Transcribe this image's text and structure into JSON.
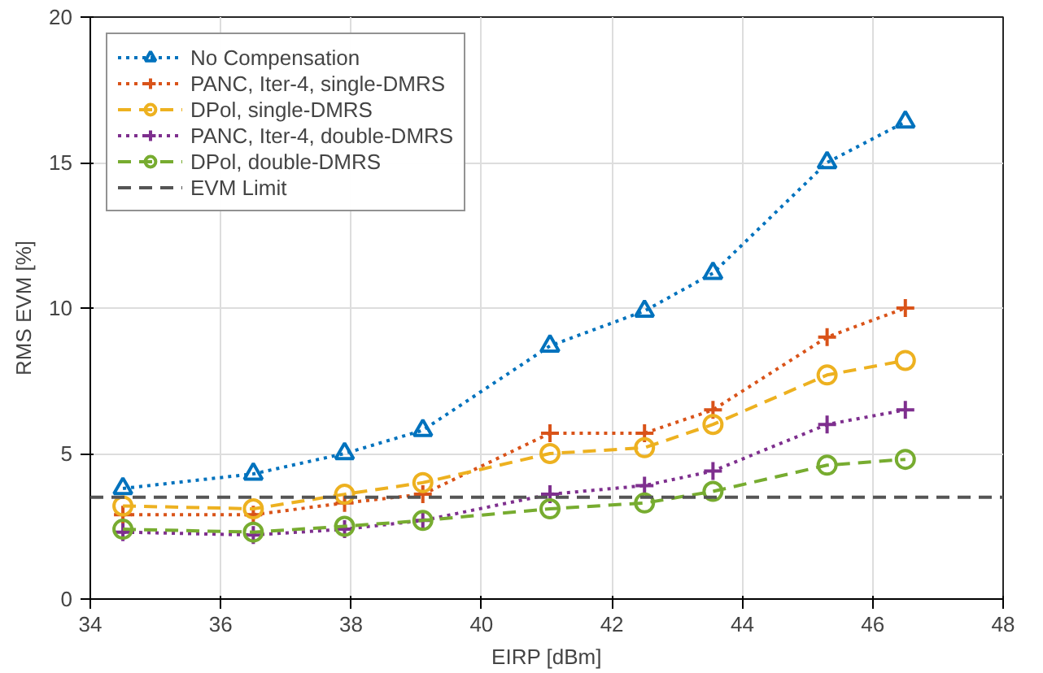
{
  "chart_data": {
    "type": "line",
    "xlabel": "EIRP [dBm]",
    "ylabel": "RMS EVM [%]",
    "x": [
      34.5,
      36.5,
      37.9,
      39.1,
      41.05,
      42.5,
      43.55,
      45.3,
      46.5
    ],
    "series": [
      {
        "name": "No Compensation",
        "color": "#0072bd",
        "marker": "triangle",
        "line_style": "dotted",
        "values": [
          3.8,
          4.3,
          5.0,
          5.8,
          8.7,
          9.9,
          11.2,
          15.0,
          16.4
        ]
      },
      {
        "name": "PANC, Iter-4, single-DMRS",
        "color": "#d95319",
        "marker": "cross",
        "line_style": "dotted",
        "values": [
          2.9,
          2.9,
          3.3,
          3.6,
          5.7,
          5.7,
          6.5,
          9.0,
          10.0
        ]
      },
      {
        "name": "DPol, single-DMRS",
        "color": "#edb120",
        "marker": "circle",
        "line_style": "dashed",
        "values": [
          3.2,
          3.1,
          3.6,
          4.0,
          5.0,
          5.2,
          6.0,
          7.7,
          8.2
        ]
      },
      {
        "name": "PANC, Iter-4, double-DMRS",
        "color": "#7e2f8e",
        "marker": "cross",
        "line_style": "dotted",
        "values": [
          2.3,
          2.2,
          2.4,
          2.7,
          3.6,
          3.9,
          4.4,
          6.0,
          6.5
        ]
      },
      {
        "name": "DPol, double-DMRS",
        "color": "#77ac30",
        "marker": "circle",
        "line_style": "dashed",
        "values": [
          2.4,
          2.3,
          2.5,
          2.7,
          3.1,
          3.3,
          3.7,
          4.6,
          4.8
        ]
      }
    ],
    "ref_lines": [
      {
        "axis": "y",
        "value": 3.5,
        "label": "EVM Limit",
        "color": "#555555",
        "line_style": "dashed"
      }
    ],
    "xlim": [
      34,
      48
    ],
    "xticks": [
      34,
      36,
      38,
      40,
      42,
      44,
      46,
      48
    ],
    "ylim": [
      0,
      20
    ],
    "yticks": [
      0,
      5,
      10,
      15,
      20
    ],
    "grid": true,
    "legend": "top left"
  }
}
